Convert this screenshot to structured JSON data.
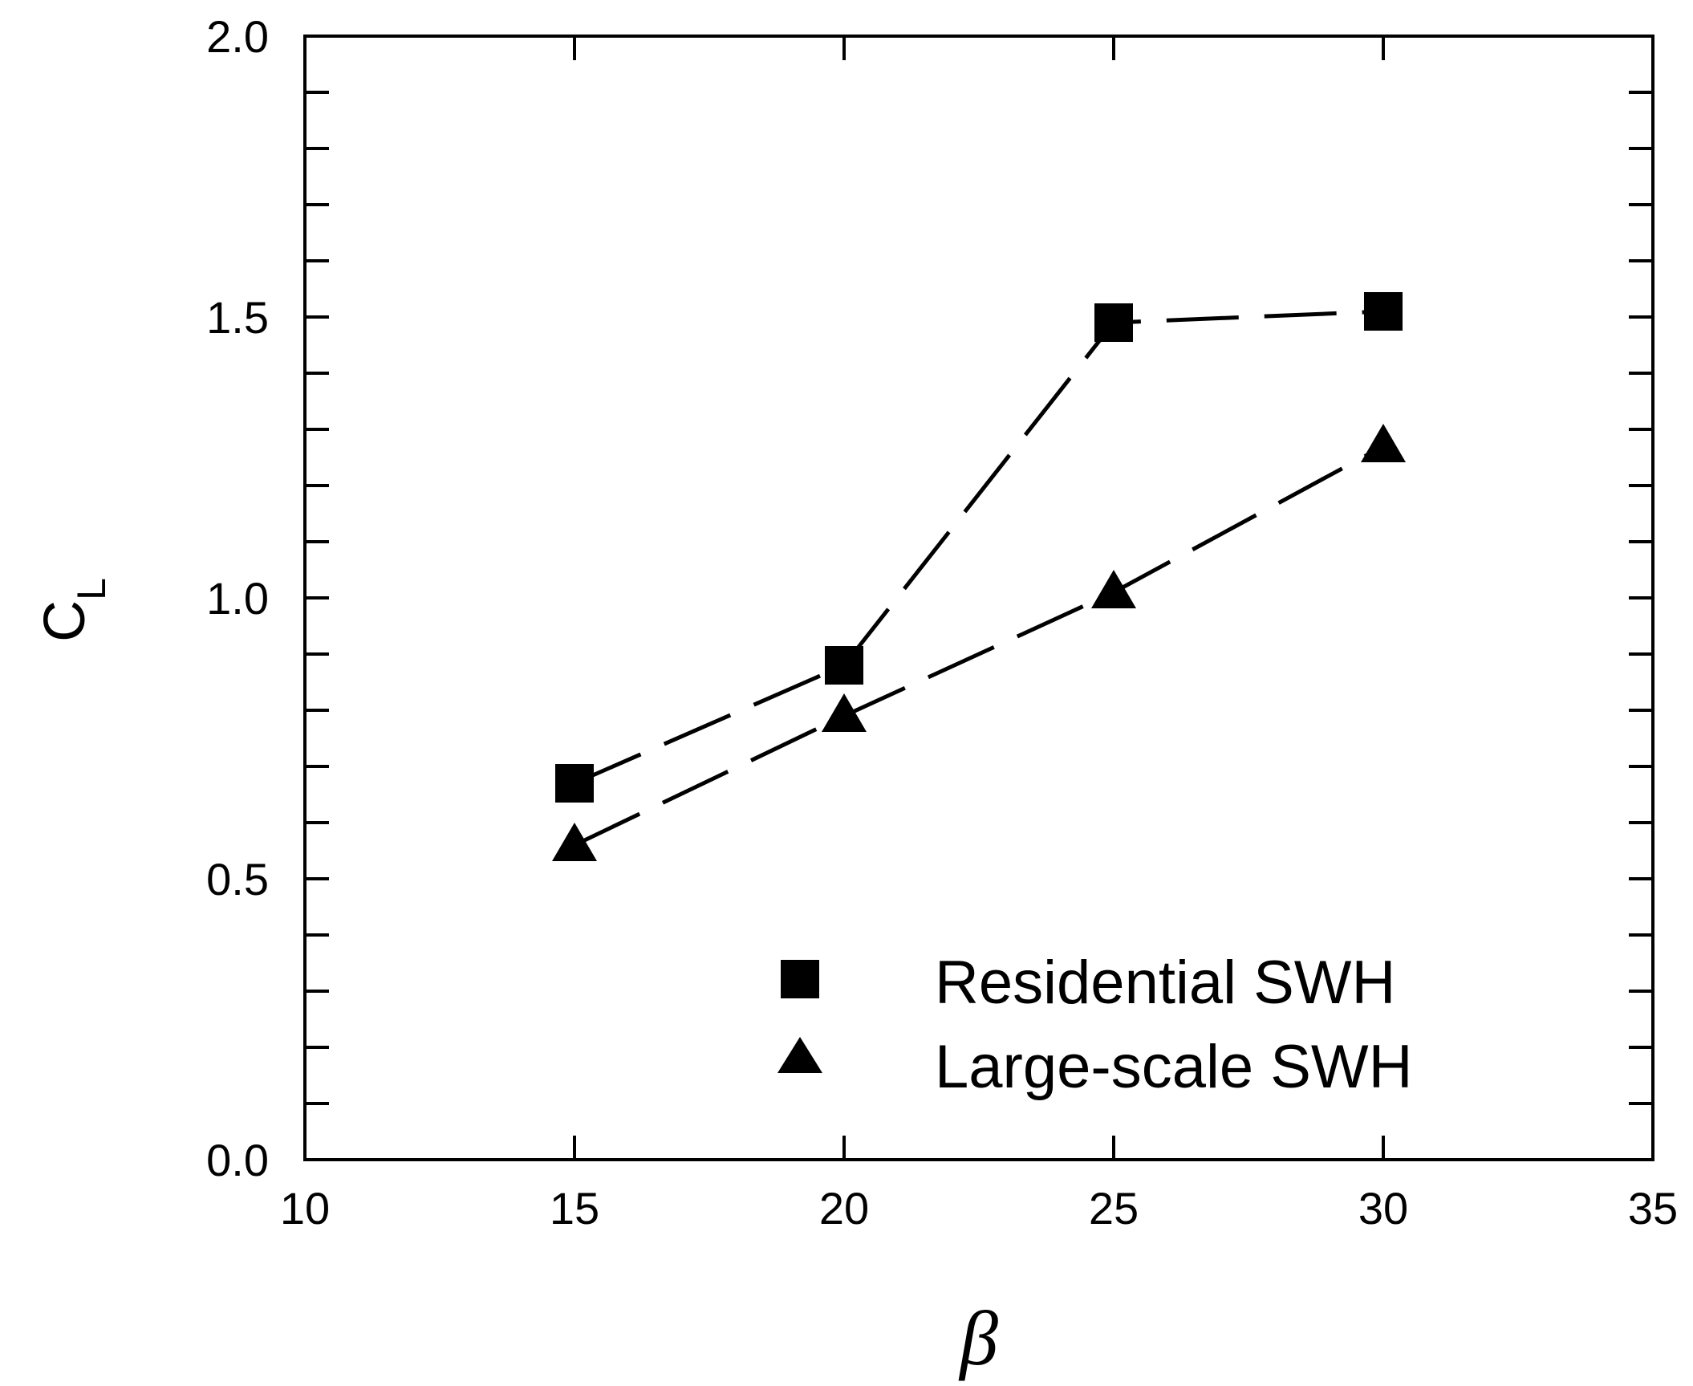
{
  "chart_data": {
    "type": "line",
    "title": "",
    "xlabel": "β",
    "ylabel": {
      "main": "C",
      "subscript": "L"
    },
    "xlim": [
      10,
      35
    ],
    "ylim": [
      0.0,
      2.0
    ],
    "x_ticks": [
      10,
      15,
      20,
      25,
      30,
      35
    ],
    "x_tick_labels": [
      "10",
      "15",
      "20",
      "25",
      "30",
      "35"
    ],
    "y_ticks": [
      0.0,
      0.5,
      1.0,
      1.5,
      2.0
    ],
    "y_tick_labels": [
      "0.0",
      "0.5",
      "1.0",
      "1.5",
      "2.0"
    ],
    "y_minor_step": 0.1,
    "grid": false,
    "legend_position": "bottom-right",
    "series": [
      {
        "name": "Residential SWH",
        "marker": "square",
        "line_style": "dashed",
        "color": "#000000",
        "x": [
          15,
          20,
          25,
          30
        ],
        "y": [
          0.67,
          0.88,
          1.49,
          1.51
        ]
      },
      {
        "name": "Large-scale SWH",
        "marker": "triangle",
        "line_style": "dashed",
        "color": "#000000",
        "x": [
          15,
          20,
          25,
          30
        ],
        "y": [
          0.56,
          0.79,
          1.01,
          1.27
        ]
      }
    ]
  }
}
